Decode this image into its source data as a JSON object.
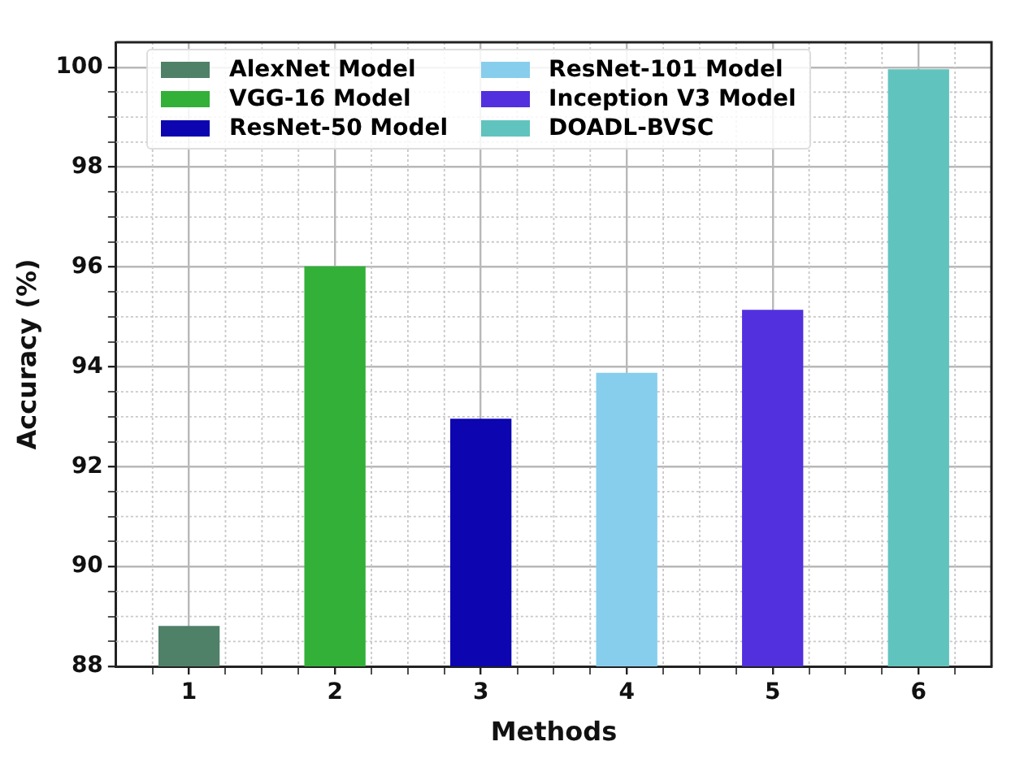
{
  "chart_data": {
    "type": "bar",
    "xlabel": "Methods",
    "ylabel": "Accuracy (%)",
    "xlim": [
      0.5,
      6.5
    ],
    "xticks": [
      1,
      {
        "value": 1.25,
        "label": null
      },
      {
        "value": 1.5,
        "label": null
      },
      {
        "value": 1.75,
        "label": null
      },
      2,
      {
        "value": 2.25,
        "label": null
      },
      {
        "value": 2.5,
        "label": null
      },
      {
        "value": 2.75,
        "label": null
      },
      3,
      {
        "value": 3.25,
        "label": null
      },
      {
        "value": 3.5,
        "label": null
      },
      {
        "value": 3.75,
        "label": null
      },
      4,
      {
        "value": 4.25,
        "label": null
      },
      {
        "value": 4.5,
        "label": null
      },
      {
        "value": 4.75,
        "label": null
      },
      5,
      {
        "value": 5.25,
        "label": null
      },
      {
        "value": 5.5,
        "label": null
      },
      {
        "value": 5.75,
        "label": null
      },
      6,
      {
        "value": 0.75,
        "label": null
      },
      {
        "value": 6.25,
        "label": null
      }
    ],
    "ylim": [
      88,
      100.5
    ],
    "yticks": [
      88,
      {
        "value": 88.5,
        "label": null
      },
      {
        "value": 89,
        "label": null
      },
      {
        "value": 89.5,
        "label": null
      },
      90,
      {
        "value": 90.5,
        "label": null
      },
      {
        "value": 91,
        "label": null
      },
      {
        "value": 91.5,
        "label": null
      },
      92,
      {
        "value": 92.5,
        "label": null
      },
      {
        "value": 93,
        "label": null
      },
      {
        "value": 93.5,
        "label": null
      },
      94,
      {
        "value": 94.5,
        "label": null
      },
      {
        "value": 95,
        "label": null
      },
      {
        "value": 95.5,
        "label": null
      },
      96,
      {
        "value": 96.5,
        "label": null
      },
      {
        "value": 97,
        "label": null
      },
      {
        "value": 97.5,
        "label": null
      },
      98,
      {
        "value": 98.5,
        "label": null
      },
      {
        "value": 99,
        "label": null
      },
      {
        "value": 99.5,
        "label": null
      },
      100
    ],
    "series": [
      {
        "name": "AlexNet Model",
        "color": "#4f8068",
        "x": [
          1
        ],
        "values": [
          88.8
        ]
      },
      {
        "name": "VGG-16 Model",
        "color": "#32b038",
        "x": [
          2
        ],
        "values": [
          96.0
        ]
      },
      {
        "name": "ResNet-50 Model",
        "color": "#0c05b0",
        "x": [
          3
        ],
        "values": [
          92.95
        ]
      },
      {
        "name": "ResNet-101 Model",
        "color": "#87ceed",
        "x": [
          4
        ],
        "values": [
          93.87
        ]
      },
      {
        "name": "Inception V3 Model",
        "color": "#5230dd",
        "x": [
          5
        ],
        "values": [
          95.13
        ]
      },
      {
        "name": "DOADL-BVSC",
        "color": "#60c3be",
        "x": [
          6
        ],
        "values": [
          99.95
        ]
      }
    ],
    "grid": true,
    "legend": "top left"
  }
}
